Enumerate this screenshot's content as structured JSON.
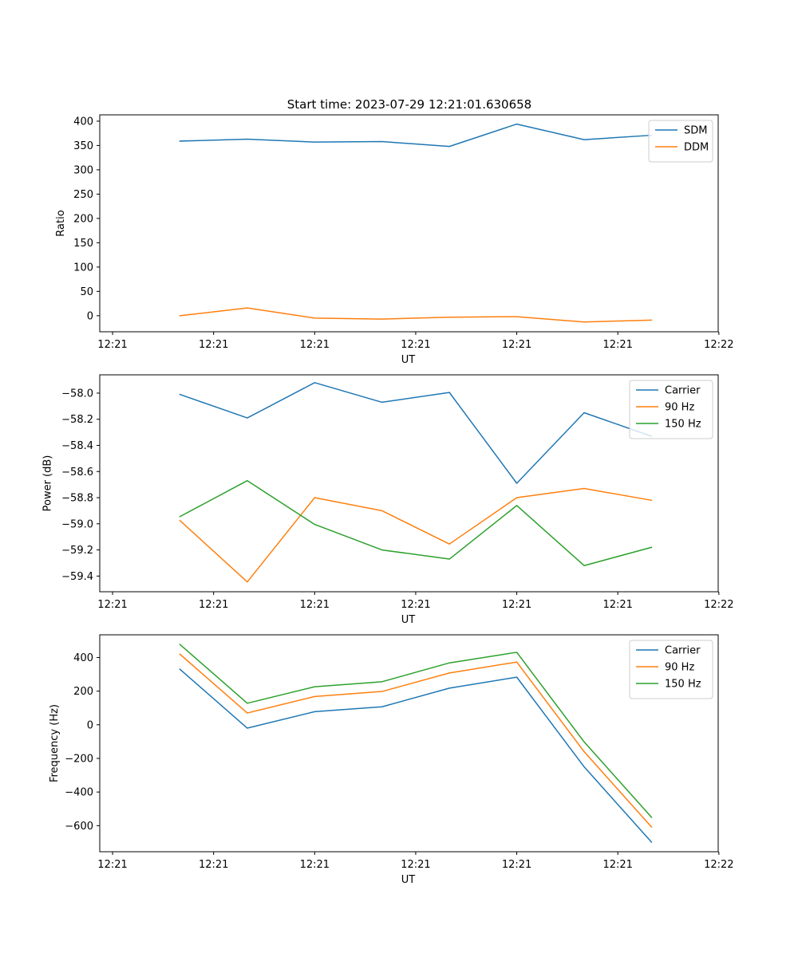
{
  "figure": {
    "title": "Start time: 2023-07-29 12:21:01.630658"
  },
  "chart_data": [
    {
      "type": "line",
      "xlabel": "UT",
      "ylabel": "Ratio",
      "x": [
        0.4,
        0.6,
        0.8,
        1.0,
        1.2,
        1.4,
        1.6,
        1.8
      ],
      "xlim": [
        0.162,
        1.998
      ],
      "xticks": [
        0.2,
        0.5,
        0.8,
        1.1,
        1.4,
        1.7,
        2.0
      ],
      "xtick_labels": [
        "12:21",
        "12:21",
        "12:21",
        "12:21",
        "12:21",
        "12:21",
        "12:22"
      ],
      "ylim": [
        -33,
        413
      ],
      "yticks": [
        0,
        50,
        100,
        150,
        200,
        250,
        300,
        350,
        400
      ],
      "ytick_labels": [
        "0",
        "50",
        "100",
        "150",
        "200",
        "250",
        "300",
        "350",
        "400"
      ],
      "legend_position": "top-right",
      "series": [
        {
          "name": "SDM",
          "color": "#1f77b4",
          "values": [
            359,
            363,
            357,
            358,
            348,
            394,
            362,
            371
          ]
        },
        {
          "name": "DDM",
          "color": "#ff7f0e",
          "values": [
            0,
            16,
            -5,
            -7,
            -3,
            -2,
            -13,
            -9
          ]
        }
      ]
    },
    {
      "type": "line",
      "xlabel": "UT",
      "ylabel": "Power (dB)",
      "x": [
        0.4,
        0.6,
        0.8,
        1.0,
        1.2,
        1.4,
        1.6,
        1.8
      ],
      "xlim": [
        0.162,
        1.998
      ],
      "xticks": [
        0.2,
        0.5,
        0.8,
        1.1,
        1.4,
        1.7,
        2.0
      ],
      "xtick_labels": [
        "12:21",
        "12:21",
        "12:21",
        "12:21",
        "12:21",
        "12:21",
        "12:22"
      ],
      "ylim": [
        -59.52,
        -57.86
      ],
      "yticks": [
        -59.4,
        -59.2,
        -59.0,
        -58.8,
        -58.6,
        -58.4,
        -58.2,
        -58.0
      ],
      "ytick_labels": [
        "−59.4",
        "−59.2",
        "−59.0",
        "−58.8",
        "−58.6",
        "−58.4",
        "−58.2",
        "−58.0"
      ],
      "legend_position": "top-right",
      "series": [
        {
          "name": "Carrier",
          "color": "#1f77b4",
          "values": [
            -58.01,
            -58.19,
            -57.92,
            -58.07,
            -57.995,
            -58.69,
            -58.15,
            -58.33
          ]
        },
        {
          "name": "90 Hz",
          "color": "#ff7f0e",
          "values": [
            -58.975,
            -59.445,
            -58.8,
            -58.9,
            -59.155,
            -58.8,
            -58.73,
            -58.82
          ]
        },
        {
          "name": "150 Hz",
          "color": "#2ca02c",
          "values": [
            -58.945,
            -58.67,
            -59.005,
            -59.2,
            -59.27,
            -58.86,
            -59.32,
            -59.18
          ]
        }
      ]
    },
    {
      "type": "line",
      "xlabel": "UT",
      "ylabel": "Frequency (Hz)",
      "x": [
        0.4,
        0.6,
        0.8,
        1.0,
        1.2,
        1.4,
        1.6,
        1.8
      ],
      "xlim": [
        0.162,
        1.998
      ],
      "xticks": [
        0.2,
        0.5,
        0.8,
        1.1,
        1.4,
        1.7,
        2.0
      ],
      "xtick_labels": [
        "12:21",
        "12:21",
        "12:21",
        "12:21",
        "12:21",
        "12:21",
        "12:22"
      ],
      "ylim": [
        -755,
        535
      ],
      "yticks": [
        -600,
        -400,
        -200,
        0,
        200,
        400
      ],
      "ytick_labels": [
        "−600",
        "−400",
        "−200",
        "0",
        "200",
        "400"
      ],
      "legend_position": "top-right",
      "series": [
        {
          "name": "Carrier",
          "color": "#1f77b4",
          "values": [
            330,
            -20,
            78,
            107,
            218,
            283,
            -250,
            -698
          ]
        },
        {
          "name": "90 Hz",
          "color": "#ff7f0e",
          "values": [
            420,
            70,
            168,
            198,
            308,
            373,
            -160,
            -608
          ]
        },
        {
          "name": "150 Hz",
          "color": "#2ca02c",
          "values": [
            478,
            128,
            226,
            256,
            368,
            431,
            -102,
            -550
          ]
        }
      ]
    }
  ]
}
